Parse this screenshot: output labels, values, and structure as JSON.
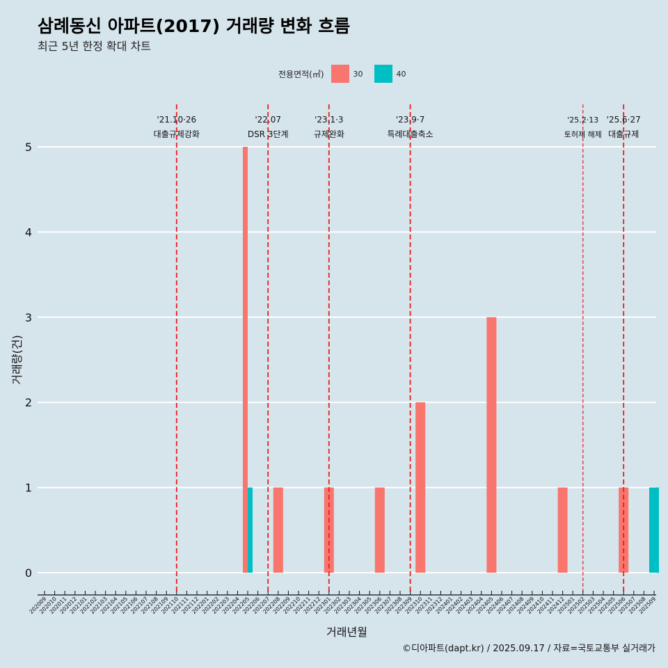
{
  "title": "삼례동신 아파트(2017) 거래량 변화 흐름",
  "subtitle": "최근 5년 한정 확대 차트",
  "caption": "©디아파트(dapt.kr) / 2025.09.17 / 자료=국토교통부 실거래가",
  "colors": {
    "s30": "#f8766d",
    "s40": "#00bfc4",
    "vline": "#ee1c1c",
    "grid": "#ffffff",
    "bg": "#d6e4ec"
  },
  "chart_data": {
    "type": "bar",
    "xlabel": "거래년월",
    "ylabel": "거래량(건)",
    "ylim": [
      0,
      5
    ],
    "yticks": [
      0,
      1,
      2,
      3,
      4,
      5
    ],
    "legend": {
      "title": "전용면적(㎡)",
      "position": "top"
    },
    "categories": [
      "202009",
      "202010",
      "202011",
      "202012",
      "202101",
      "202102",
      "202103",
      "202104",
      "202105",
      "202106",
      "202107",
      "202108",
      "202109",
      "202110",
      "202111",
      "202112",
      "202201",
      "202202",
      "202203",
      "202204",
      "202205",
      "202206",
      "202207",
      "202208",
      "202209",
      "202210",
      "202211",
      "202212",
      "202301",
      "202302",
      "202303",
      "202304",
      "202305",
      "202306",
      "202307",
      "202308",
      "202309",
      "202310",
      "202311",
      "202312",
      "202401",
      "202402",
      "202403",
      "202404",
      "202405",
      "202406",
      "202407",
      "202408",
      "202409",
      "202410",
      "202411",
      "202412",
      "202501",
      "202502",
      "202503",
      "202504",
      "202505",
      "202506",
      "202507",
      "202508",
      "202509"
    ],
    "series": [
      {
        "name": "30",
        "color": "#f8766d",
        "points": [
          {
            "x": "202205",
            "y": 5
          },
          {
            "x": "202208",
            "y": 1
          },
          {
            "x": "202301",
            "y": 1
          },
          {
            "x": "202306",
            "y": 1
          },
          {
            "x": "202310",
            "y": 2
          },
          {
            "x": "202405",
            "y": 3
          },
          {
            "x": "202412",
            "y": 1
          },
          {
            "x": "202506",
            "y": 1
          }
        ]
      },
      {
        "name": "40",
        "color": "#00bfc4",
        "points": [
          {
            "x": "202205",
            "y": 1
          },
          {
            "x": "202509",
            "y": 1
          }
        ]
      }
    ],
    "events": [
      {
        "x": "202110",
        "date": "'21.10·26",
        "label": "대출규제강화",
        "dashed": "long"
      },
      {
        "x": "202207",
        "date": "'22.07",
        "label": "DSR 3단계",
        "dashed": "long"
      },
      {
        "x": "202301",
        "date": "'23.1·3",
        "label": "규제완화",
        "dashed": "long"
      },
      {
        "x": "202309",
        "date": "'23.9·7",
        "label": "특례대출축소",
        "dashed": "long"
      },
      {
        "x": "202502",
        "date": "'25.2·13",
        "label": "토허제 해제",
        "dashed": "short"
      },
      {
        "x": "202506",
        "date": "'25.6·27",
        "label": "대출규제",
        "dashed": "long"
      }
    ]
  }
}
